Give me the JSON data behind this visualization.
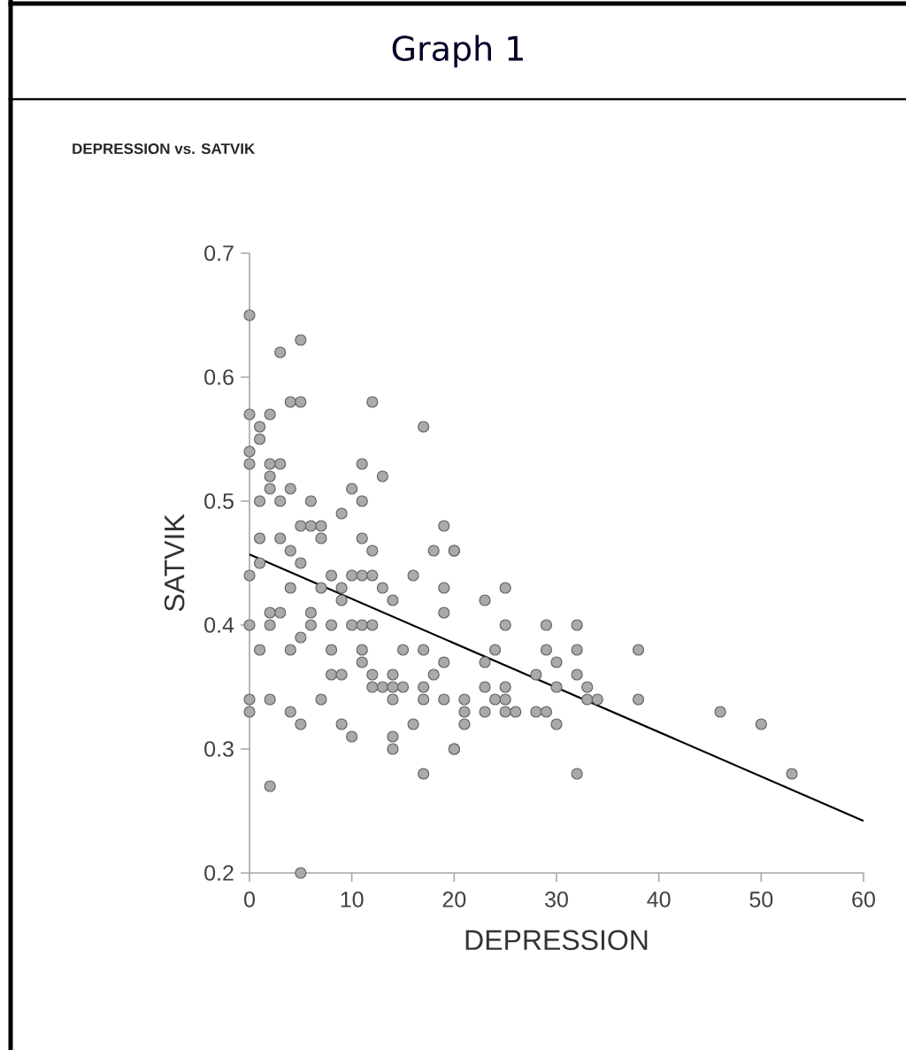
{
  "chart_data": {
    "type": "scatter",
    "title": "Graph 1",
    "subtitle": "DEPRESSION vs. SATVIK",
    "xlabel": "DEPRESSION",
    "ylabel": "SATVIK",
    "xlim": [
      0,
      60
    ],
    "ylim": [
      0.2,
      0.7
    ],
    "xticks": [
      0,
      10,
      20,
      30,
      40,
      50,
      60
    ],
    "yticks": [
      0.2,
      0.3,
      0.4,
      0.5,
      0.6,
      0.7
    ],
    "marker": "circle",
    "series": [
      {
        "color": "#aaaaaa",
        "x": [
          0,
          3,
          5,
          0,
          2,
          1,
          1,
          4,
          5,
          12,
          17,
          0,
          0,
          2,
          3,
          2,
          2,
          4,
          1,
          3,
          6,
          11,
          13,
          10,
          11,
          9,
          5,
          6,
          7,
          1,
          3,
          7,
          11,
          4,
          12,
          19,
          18,
          20,
          5,
          1,
          0,
          8,
          10,
          11,
          12,
          16,
          4,
          7,
          9,
          13,
          19,
          9,
          14,
          2,
          3,
          6,
          19,
          0,
          2,
          6,
          8,
          10,
          11,
          12,
          5,
          1,
          4,
          8,
          11,
          15,
          17,
          11,
          19,
          8,
          9,
          12,
          14,
          18,
          12,
          13,
          14,
          15,
          17,
          0,
          0,
          2,
          7,
          14,
          17,
          19,
          4,
          5,
          9,
          16,
          10,
          14,
          14,
          20,
          17,
          2,
          5,
          20,
          23,
          25,
          25,
          29,
          32,
          24,
          29,
          32,
          38,
          23,
          30,
          28,
          32,
          23,
          25,
          30,
          33,
          21,
          24,
          25,
          33,
          34,
          38,
          21,
          23,
          25,
          26,
          28,
          29,
          46,
          21,
          30,
          50,
          20,
          32,
          53
        ],
        "values": [
          0.65,
          0.62,
          0.63,
          0.57,
          0.57,
          0.56,
          0.55,
          0.58,
          0.58,
          0.58,
          0.56,
          0.54,
          0.53,
          0.53,
          0.53,
          0.52,
          0.51,
          0.51,
          0.5,
          0.5,
          0.5,
          0.53,
          0.52,
          0.51,
          0.5,
          0.49,
          0.48,
          0.48,
          0.48,
          0.47,
          0.47,
          0.47,
          0.47,
          0.46,
          0.46,
          0.48,
          0.46,
          0.46,
          0.45,
          0.45,
          0.44,
          0.44,
          0.44,
          0.44,
          0.44,
          0.44,
          0.43,
          0.43,
          0.43,
          0.43,
          0.43,
          0.42,
          0.42,
          0.41,
          0.41,
          0.41,
          0.41,
          0.4,
          0.4,
          0.4,
          0.4,
          0.4,
          0.4,
          0.4,
          0.39,
          0.38,
          0.38,
          0.38,
          0.38,
          0.38,
          0.38,
          0.37,
          0.37,
          0.36,
          0.36,
          0.36,
          0.36,
          0.36,
          0.35,
          0.35,
          0.35,
          0.35,
          0.35,
          0.34,
          0.33,
          0.34,
          0.34,
          0.34,
          0.34,
          0.34,
          0.33,
          0.32,
          0.32,
          0.32,
          0.31,
          0.31,
          0.3,
          0.3,
          0.28,
          0.27,
          0.2,
          0.46,
          0.42,
          0.43,
          0.4,
          0.4,
          0.4,
          0.38,
          0.38,
          0.38,
          0.38,
          0.37,
          0.37,
          0.36,
          0.36,
          0.35,
          0.35,
          0.35,
          0.35,
          0.34,
          0.34,
          0.34,
          0.34,
          0.34,
          0.34,
          0.33,
          0.33,
          0.33,
          0.33,
          0.33,
          0.33,
          0.33,
          0.32,
          0.32,
          0.32,
          0.3,
          0.28,
          0.28
        ]
      },
      {
        "type": "line",
        "marker": "none",
        "color": "#000000",
        "x": [
          0,
          60
        ],
        "values": [
          0.457,
          0.242
        ]
      }
    ]
  }
}
